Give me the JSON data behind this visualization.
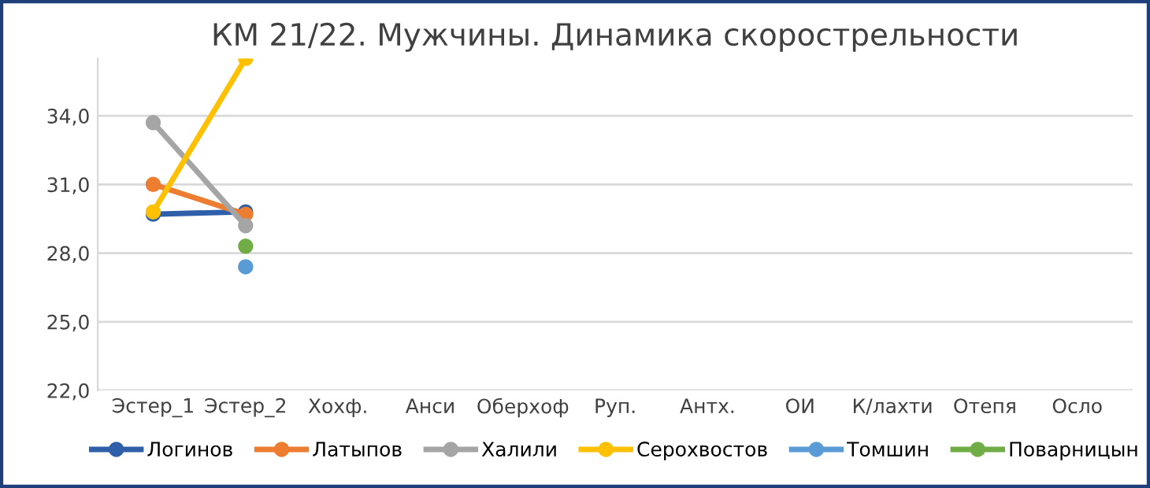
{
  "chart_data": {
    "type": "line",
    "title": "КМ 21/22. Мужчины. Динамика скорострельности",
    "categories": [
      "Эстер_1",
      "Эстер_2",
      "Хохф.",
      "Анси",
      "Оберхоф",
      "Руп.",
      "Антх.",
      "ОИ",
      "К/лахти",
      "Отепя",
      "Осло"
    ],
    "series": [
      {
        "name": "Логинов",
        "color": "#2e5fa8",
        "values": [
          29.7,
          29.8,
          null,
          null,
          null,
          null,
          null,
          null,
          null,
          null,
          null
        ]
      },
      {
        "name": "Латыпов",
        "color": "#ed7d31",
        "values": [
          31.0,
          29.7,
          null,
          null,
          null,
          null,
          null,
          null,
          null,
          null,
          null
        ]
      },
      {
        "name": "Халили",
        "color": "#a5a5a5",
        "values": [
          33.7,
          29.2,
          null,
          null,
          null,
          null,
          null,
          null,
          null,
          null,
          null
        ]
      },
      {
        "name": "Серохвостов",
        "color": "#ffc000",
        "values": [
          29.8,
          36.5,
          null,
          null,
          null,
          null,
          null,
          null,
          null,
          null,
          null
        ]
      },
      {
        "name": "Томшин",
        "color": "#5b9bd5",
        "values": [
          null,
          27.4,
          null,
          null,
          null,
          null,
          null,
          null,
          null,
          null,
          null
        ]
      },
      {
        "name": "Поварницын",
        "color": "#70ad47",
        "values": [
          null,
          28.3,
          null,
          null,
          null,
          null,
          null,
          null,
          null,
          null,
          null
        ]
      }
    ],
    "ylim": [
      22,
      36.5
    ],
    "yticks": [
      {
        "value": 22,
        "label": "22,0"
      },
      {
        "value": 25,
        "label": "25,0"
      },
      {
        "value": 28,
        "label": "28,0"
      },
      {
        "value": 31,
        "label": "31,0"
      },
      {
        "value": 34,
        "label": "34,0"
      }
    ],
    "grid": "y",
    "legend": "bottom",
    "marker": "circle",
    "line_style": "solid"
  }
}
